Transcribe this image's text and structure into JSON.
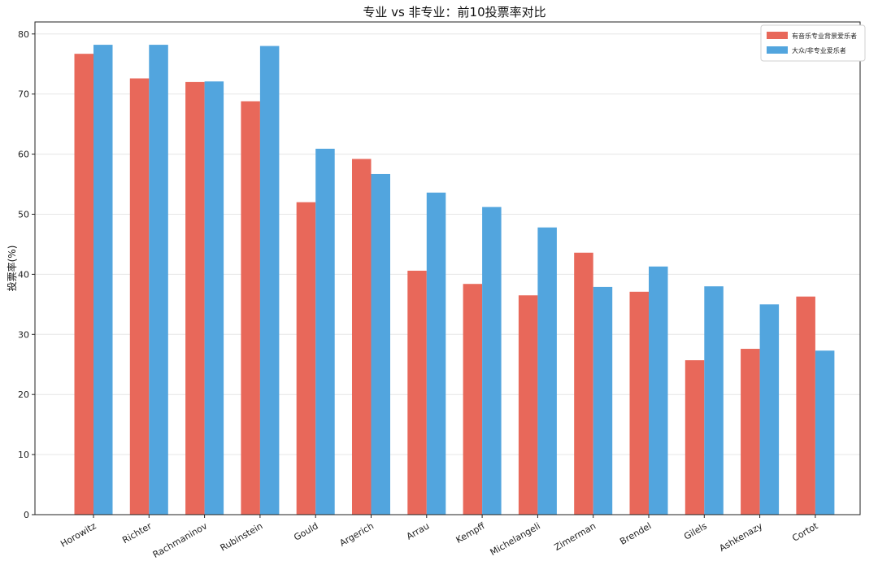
{
  "chart_data": {
    "type": "bar",
    "title": "专业 vs 非专业：前10投票率对比",
    "xlabel": "",
    "ylabel": "投票率(%)",
    "ylim": [
      0,
      82
    ],
    "yticks": [
      0,
      10,
      20,
      30,
      40,
      50,
      60,
      70,
      80
    ],
    "grid": "horizontal",
    "legend_position": "top-right",
    "categories": [
      "Horowitz",
      "Richter",
      "Rachmaninov",
      "Rubinstein",
      "Gould",
      "Argerich",
      "Arrau",
      "Kempff",
      "Michelangeli",
      "Zimerman",
      "Brendel",
      "Gilels",
      "Ashkenazy",
      "Cortot"
    ],
    "series": [
      {
        "name": "有音乐专业背景爱乐者",
        "color": "#e8685a",
        "values": [
          76.7,
          72.6,
          72.0,
          68.8,
          52.0,
          59.2,
          40.6,
          38.4,
          36.5,
          43.6,
          37.1,
          25.7,
          27.6,
          36.3
        ]
      },
      {
        "name": "大众/非专业爱乐者",
        "color": "#52a5de",
        "values": [
          78.2,
          78.2,
          72.1,
          78.0,
          60.9,
          56.7,
          53.6,
          51.2,
          47.8,
          37.9,
          41.3,
          38.0,
          35.0,
          27.3
        ]
      }
    ]
  }
}
